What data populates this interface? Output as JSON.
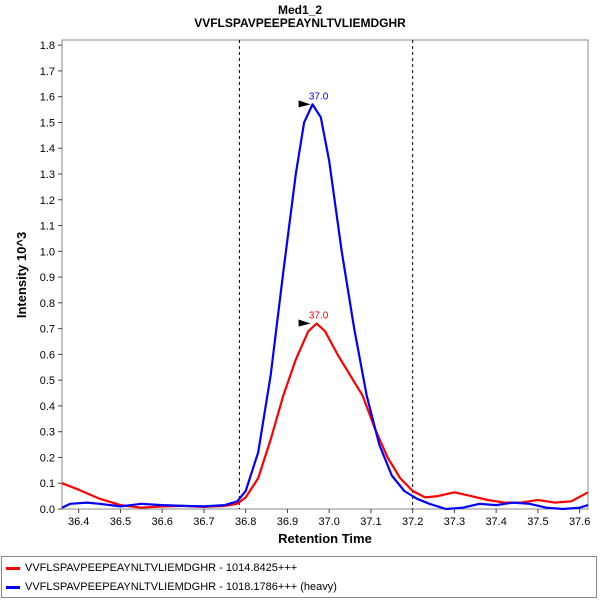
{
  "chart_data": {
    "type": "line",
    "title": "Med1_2",
    "subtitle": "VVFLSPAVPEEPEAYNLTVLIEMDGHR",
    "xlabel": "Retention Time",
    "ylabel": "Intensity 10^3",
    "xlim": [
      36.36,
      37.62
    ],
    "ylim": [
      0,
      1.82
    ],
    "x_ticks": [
      "36.4",
      "36.5",
      "36.6",
      "36.7",
      "36.8",
      "36.9",
      "37.0",
      "37.1",
      "37.2",
      "37.3",
      "37.4",
      "37.5",
      "37.6"
    ],
    "y_ticks": [
      "0.0",
      "0.1",
      "0.2",
      "0.3",
      "0.4",
      "0.5",
      "0.6",
      "0.7",
      "0.8",
      "0.9",
      "1.0",
      "1.1",
      "1.2",
      "1.3",
      "1.4",
      "1.5",
      "1.6",
      "1.7",
      "1.8"
    ],
    "integration_boundaries": [
      36.785,
      37.2
    ],
    "legend_position": "bottom",
    "series": [
      {
        "name": "VVFLSPAVPEEPEAYNLTVLIEMDGHR - 1014.8425+++",
        "color": "#ff0000",
        "peak_label": "37.0",
        "peak": [
          36.965,
          0.72
        ],
        "points": [
          [
            36.36,
            0.1
          ],
          [
            36.4,
            0.075
          ],
          [
            36.45,
            0.04
          ],
          [
            36.5,
            0.015
          ],
          [
            36.55,
            0.005
          ],
          [
            36.6,
            0.01
          ],
          [
            36.65,
            0.012
          ],
          [
            36.7,
            0.008
          ],
          [
            36.75,
            0.012
          ],
          [
            36.78,
            0.02
          ],
          [
            36.8,
            0.045
          ],
          [
            36.83,
            0.12
          ],
          [
            36.86,
            0.27
          ],
          [
            36.89,
            0.44
          ],
          [
            36.92,
            0.58
          ],
          [
            36.95,
            0.69
          ],
          [
            36.97,
            0.72
          ],
          [
            36.99,
            0.69
          ],
          [
            37.02,
            0.6
          ],
          [
            37.05,
            0.52
          ],
          [
            37.08,
            0.44
          ],
          [
            37.11,
            0.31
          ],
          [
            37.14,
            0.2
          ],
          [
            37.17,
            0.12
          ],
          [
            37.2,
            0.07
          ],
          [
            37.23,
            0.045
          ],
          [
            37.26,
            0.05
          ],
          [
            37.3,
            0.065
          ],
          [
            37.34,
            0.05
          ],
          [
            37.38,
            0.035
          ],
          [
            37.42,
            0.025
          ],
          [
            37.46,
            0.025
          ],
          [
            37.5,
            0.035
          ],
          [
            37.54,
            0.025
          ],
          [
            37.58,
            0.03
          ],
          [
            37.62,
            0.065
          ]
        ]
      },
      {
        "name": "VVFLSPAVPEEPEAYNLTVLIEMDGHR - 1018.1786+++ (heavy)",
        "color": "#0000ff",
        "peak_label": "37.0",
        "peak": [
          36.965,
          1.57
        ],
        "points": [
          [
            36.36,
            0.005
          ],
          [
            36.38,
            0.02
          ],
          [
            36.42,
            0.025
          ],
          [
            36.45,
            0.02
          ],
          [
            36.5,
            0.01
          ],
          [
            36.55,
            0.02
          ],
          [
            36.6,
            0.015
          ],
          [
            36.65,
            0.012
          ],
          [
            36.7,
            0.01
          ],
          [
            36.75,
            0.015
          ],
          [
            36.78,
            0.03
          ],
          [
            36.8,
            0.07
          ],
          [
            36.83,
            0.22
          ],
          [
            36.86,
            0.52
          ],
          [
            36.89,
            0.92
          ],
          [
            36.92,
            1.3
          ],
          [
            36.94,
            1.5
          ],
          [
            36.96,
            1.57
          ],
          [
            36.98,
            1.52
          ],
          [
            37.0,
            1.35
          ],
          [
            37.03,
            1.0
          ],
          [
            37.06,
            0.7
          ],
          [
            37.09,
            0.44
          ],
          [
            37.12,
            0.25
          ],
          [
            37.15,
            0.13
          ],
          [
            37.18,
            0.07
          ],
          [
            37.21,
            0.04
          ],
          [
            37.24,
            0.02
          ],
          [
            37.28,
            0.0
          ],
          [
            37.32,
            0.005
          ],
          [
            37.36,
            0.02
          ],
          [
            37.4,
            0.015
          ],
          [
            37.44,
            0.025
          ],
          [
            37.48,
            0.02
          ],
          [
            37.52,
            0.005
          ],
          [
            37.56,
            0.0
          ],
          [
            37.6,
            0.005
          ],
          [
            37.62,
            0.015
          ]
        ]
      }
    ]
  }
}
